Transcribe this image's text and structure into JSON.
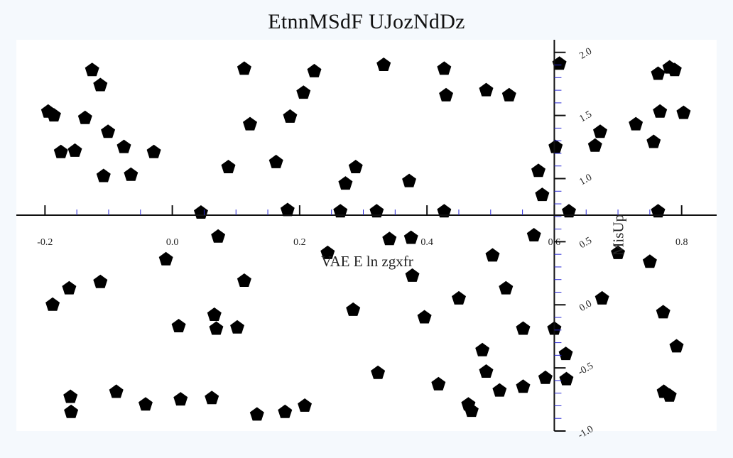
{
  "chart_data": {
    "type": "scatter",
    "title": "EtnnMSdF  UJozNdDz",
    "xlabel": "VAE E ln zgxfr",
    "ylabel": "MisUp",
    "xlim": [
      -0.245,
      0.855
    ],
    "ylim": [
      -1.0,
      2.1
    ],
    "x_axis_at_y": 0.71,
    "y_axis_at_x": 0.6,
    "x_ticks": [
      -0.2,
      0.0,
      0.2,
      0.4,
      0.6,
      0.8
    ],
    "x_tick_labels": [
      "-0.2",
      "0.0",
      "0.2",
      "0.4",
      "0.6",
      "0.8"
    ],
    "y_ticks": [
      -1.0,
      -0.5,
      0.0,
      0.5,
      1.0,
      1.5,
      2.0
    ],
    "y_tick_labels": [
      "-1.0",
      "-0.5",
      "0.0",
      "0.5",
      "1.0",
      "1.5",
      "2.0"
    ],
    "grid": false,
    "marker": "pentagon",
    "marker_color": "#000000",
    "points": [
      [
        -0.195,
        1.53
      ],
      [
        -0.186,
        1.5
      ],
      [
        -0.175,
        1.21
      ],
      [
        -0.153,
        1.22
      ],
      [
        -0.137,
        1.48
      ],
      [
        -0.126,
        1.86
      ],
      [
        -0.113,
        1.74
      ],
      [
        -0.108,
        1.02
      ],
      [
        -0.101,
        1.37
      ],
      [
        -0.076,
        1.25
      ],
      [
        -0.065,
        1.03
      ],
      [
        -0.029,
        1.21
      ],
      [
        0.045,
        0.73
      ],
      [
        0.113,
        1.87
      ],
      [
        0.088,
        1.09
      ],
      [
        0.122,
        1.43
      ],
      [
        0.163,
        1.13
      ],
      [
        0.185,
        1.49
      ],
      [
        0.206,
        1.68
      ],
      [
        0.223,
        1.85
      ],
      [
        0.181,
        0.75
      ],
      [
        0.264,
        0.74
      ],
      [
        0.272,
        0.96
      ],
      [
        0.288,
        1.09
      ],
      [
        0.321,
        0.74
      ],
      [
        0.332,
        1.9
      ],
      [
        0.372,
        0.98
      ],
      [
        0.427,
        0.74
      ],
      [
        0.427,
        1.87
      ],
      [
        0.43,
        1.66
      ],
      [
        0.493,
        1.7
      ],
      [
        0.529,
        1.66
      ],
      [
        0.575,
        1.06
      ],
      [
        0.581,
        0.87
      ],
      [
        0.602,
        1.25
      ],
      [
        0.608,
        1.91
      ],
      [
        0.623,
        0.74
      ],
      [
        0.664,
        1.26
      ],
      [
        0.672,
        1.37
      ],
      [
        0.728,
        1.43
      ],
      [
        0.756,
        1.29
      ],
      [
        0.763,
        0.74
      ],
      [
        0.766,
        1.53
      ],
      [
        0.763,
        1.83
      ],
      [
        0.781,
        1.88
      ],
      [
        0.789,
        1.86
      ],
      [
        0.803,
        1.52
      ],
      [
        -0.188,
        0.0
      ],
      [
        -0.162,
        0.13
      ],
      [
        -0.113,
        0.18
      ],
      [
        -0.01,
        0.36
      ],
      [
        0.072,
        0.54
      ],
      [
        0.01,
        -0.17
      ],
      [
        0.066,
        -0.08
      ],
      [
        0.069,
        -0.19
      ],
      [
        0.102,
        -0.18
      ],
      [
        0.113,
        0.19
      ],
      [
        0.244,
        0.41
      ],
      [
        0.284,
        -0.04
      ],
      [
        0.341,
        0.52
      ],
      [
        0.375,
        0.53
      ],
      [
        0.377,
        0.23
      ],
      [
        0.396,
        -0.1
      ],
      [
        0.45,
        0.05
      ],
      [
        0.503,
        0.39
      ],
      [
        0.524,
        0.13
      ],
      [
        0.551,
        -0.19
      ],
      [
        0.568,
        0.55
      ],
      [
        0.6,
        -0.19
      ],
      [
        0.618,
        -0.39
      ],
      [
        0.323,
        -0.54
      ],
      [
        0.418,
        -0.63
      ],
      [
        0.487,
        -0.36
      ],
      [
        0.493,
        -0.53
      ],
      [
        0.514,
        -0.68
      ],
      [
        0.551,
        -0.65
      ],
      [
        0.586,
        -0.58
      ],
      [
        0.619,
        -0.59
      ],
      [
        0.7,
        0.41
      ],
      [
        0.675,
        0.05
      ],
      [
        0.75,
        0.34
      ],
      [
        0.771,
        -0.06
      ],
      [
        0.792,
        -0.33
      ],
      [
        0.772,
        -0.69
      ],
      [
        0.781,
        -0.72
      ],
      [
        -0.16,
        -0.73
      ],
      [
        -0.159,
        -0.85
      ],
      [
        -0.088,
        -0.69
      ],
      [
        -0.042,
        -0.79
      ],
      [
        0.013,
        -0.75
      ],
      [
        0.062,
        -0.74
      ],
      [
        0.133,
        -0.87
      ],
      [
        0.177,
        -0.85
      ],
      [
        0.208,
        -0.8
      ],
      [
        0.465,
        -0.79
      ],
      [
        0.47,
        -0.84
      ]
    ]
  }
}
